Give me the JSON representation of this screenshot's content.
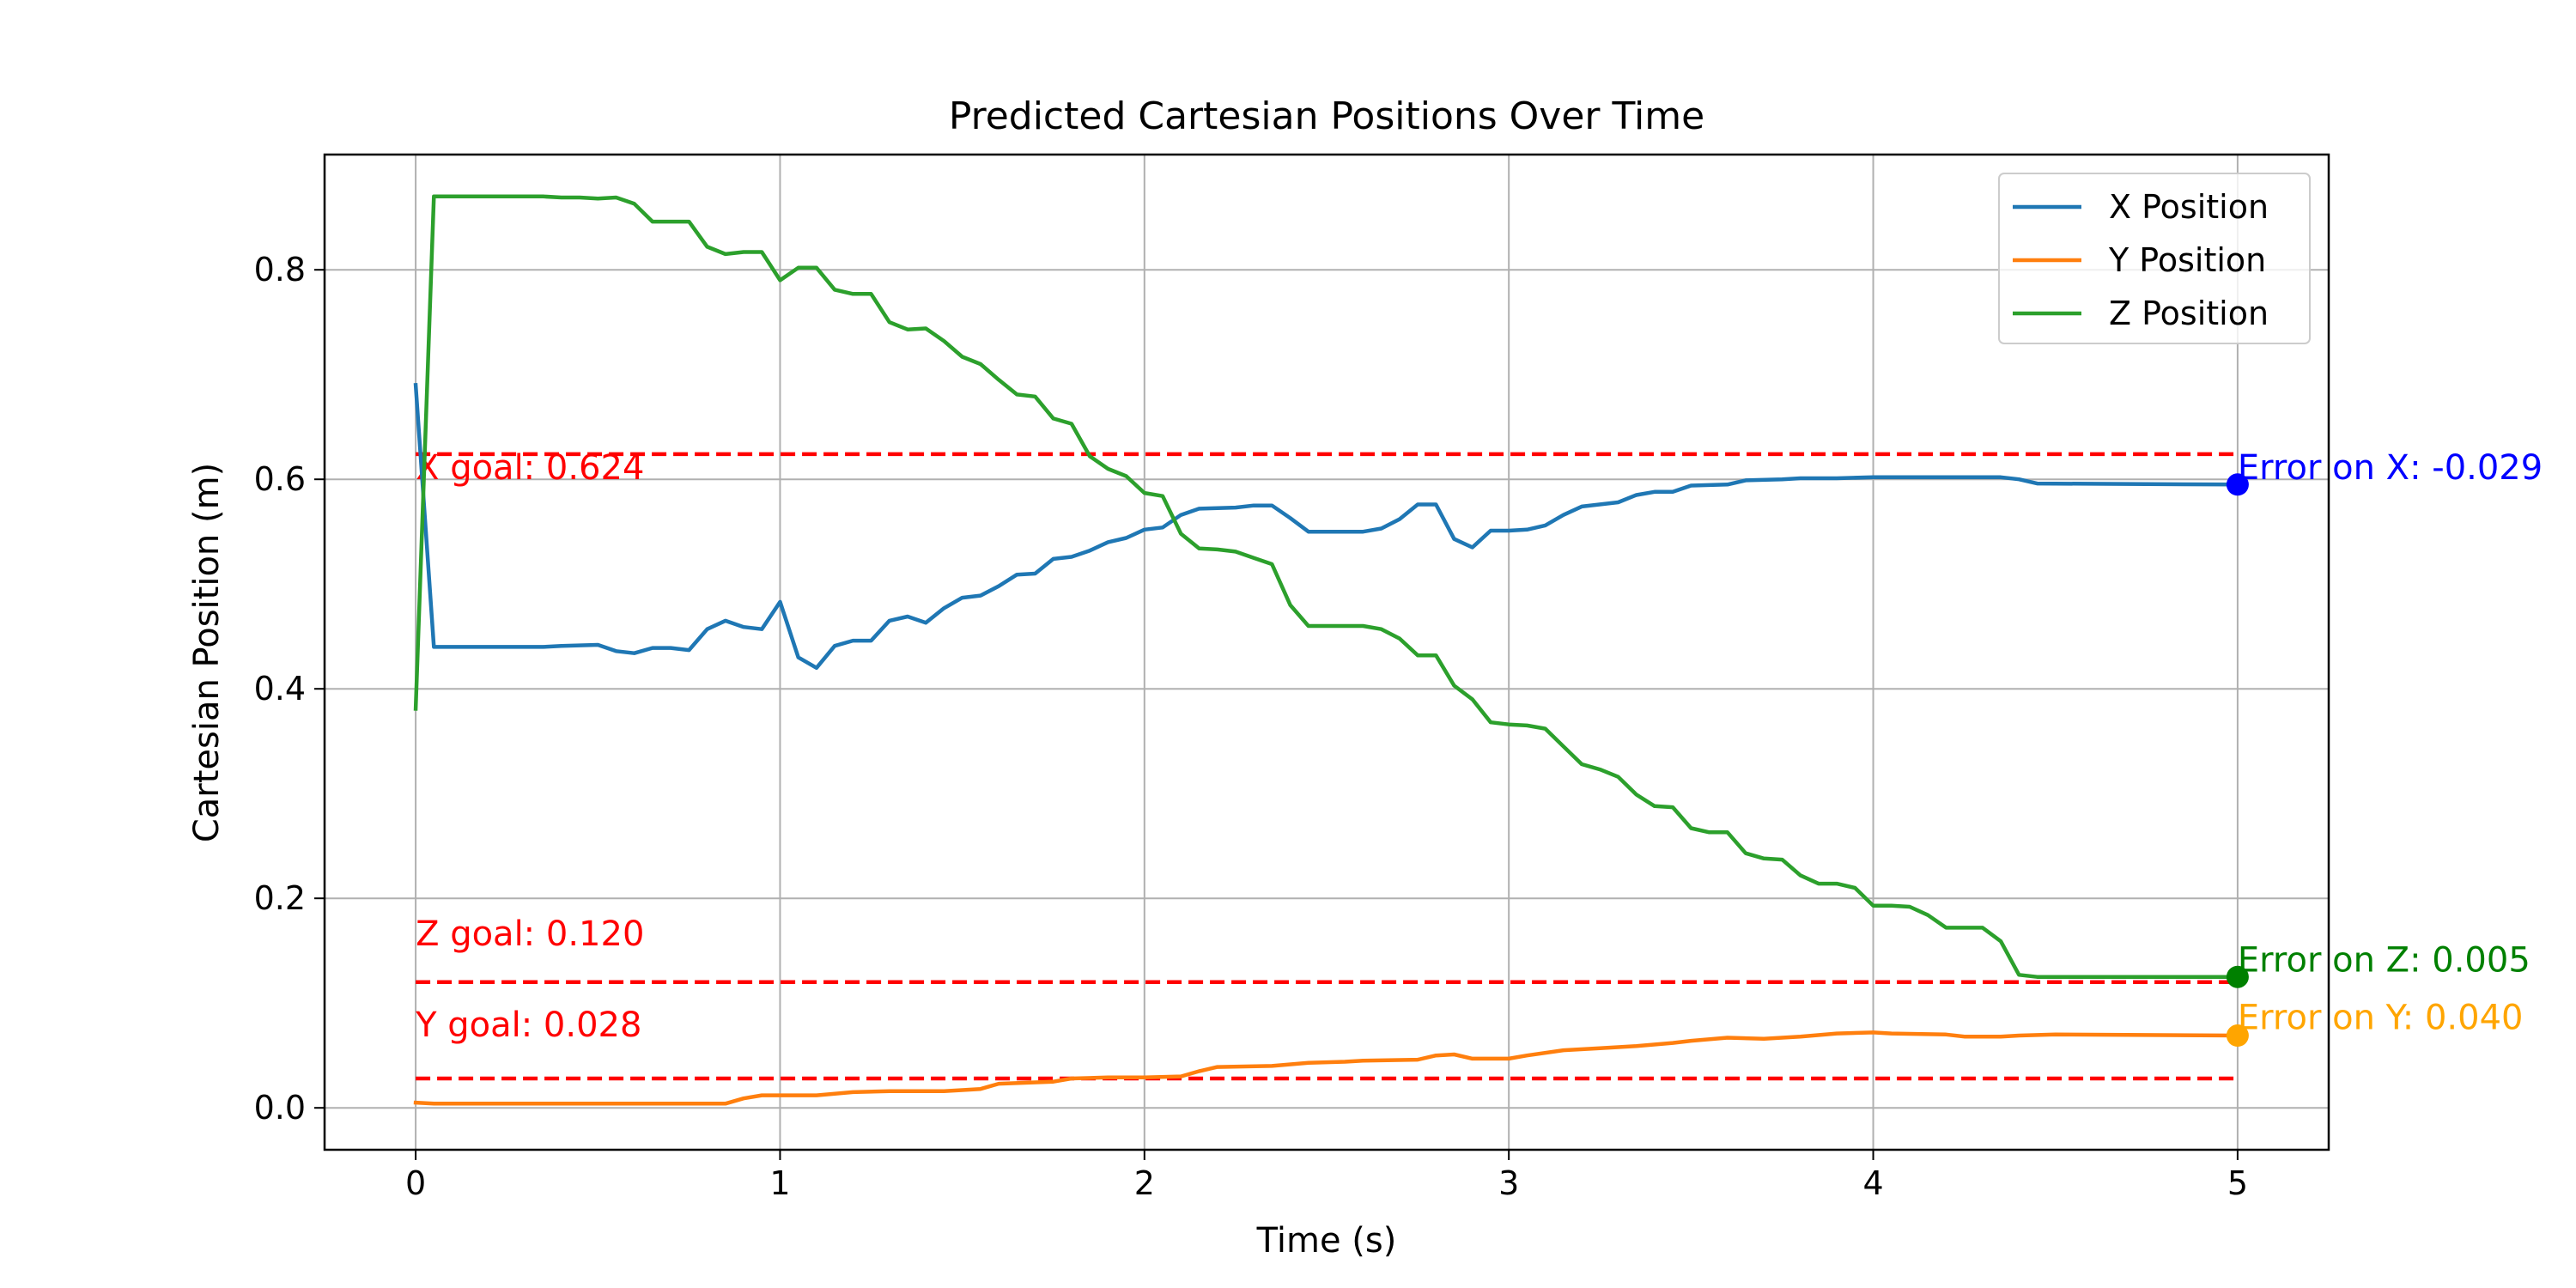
{
  "chart_data": {
    "type": "line",
    "title": "Predicted Cartesian Positions Over Time",
    "xlabel": "Time (s)",
    "ylabel": "Cartesian Position (m)",
    "xlim": [
      -0.25,
      5.25
    ],
    "ylim": [
      -0.04,
      0.91
    ],
    "x_ticks": [
      0,
      1,
      2,
      3,
      4,
      5
    ],
    "y_ticks": [
      0.0,
      0.2,
      0.4,
      0.6,
      0.8
    ],
    "x_tick_labels": [
      "0",
      "1",
      "2",
      "3",
      "4",
      "5"
    ],
    "y_tick_labels": [
      "0.0",
      "0.2",
      "0.4",
      "0.6",
      "0.8"
    ],
    "grid": true,
    "legend": {
      "placement": "top-right"
    },
    "series": [
      {
        "name": "X Position",
        "color": "#1f77b4",
        "points": [
          [
            0,
            0.69
          ],
          [
            0.05,
            0.44
          ],
          [
            0.1,
            0.44
          ],
          [
            0.2,
            0.44
          ],
          [
            0.35,
            0.44
          ],
          [
            0.4,
            0.441
          ],
          [
            0.5,
            0.442
          ],
          [
            0.55,
            0.436
          ],
          [
            0.6,
            0.434
          ],
          [
            0.65,
            0.439
          ],
          [
            0.7,
            0.439
          ],
          [
            0.75,
            0.437
          ],
          [
            0.8,
            0.457
          ],
          [
            0.85,
            0.465
          ],
          [
            0.9,
            0.459
          ],
          [
            0.95,
            0.457
          ],
          [
            1.0,
            0.483
          ],
          [
            1.05,
            0.43
          ],
          [
            1.1,
            0.42
          ],
          [
            1.15,
            0.441
          ],
          [
            1.2,
            0.446
          ],
          [
            1.25,
            0.446
          ],
          [
            1.3,
            0.465
          ],
          [
            1.35,
            0.469
          ],
          [
            1.4,
            0.463
          ],
          [
            1.45,
            0.477
          ],
          [
            1.5,
            0.487
          ],
          [
            1.55,
            0.489
          ],
          [
            1.6,
            0.498
          ],
          [
            1.65,
            0.509
          ],
          [
            1.7,
            0.51
          ],
          [
            1.75,
            0.524
          ],
          [
            1.8,
            0.526
          ],
          [
            1.85,
            0.532
          ],
          [
            1.9,
            0.54
          ],
          [
            1.95,
            0.544
          ],
          [
            2.0,
            0.552
          ],
          [
            2.05,
            0.554
          ],
          [
            2.1,
            0.566
          ],
          [
            2.15,
            0.572
          ],
          [
            2.25,
            0.573
          ],
          [
            2.3,
            0.575
          ],
          [
            2.35,
            0.575
          ],
          [
            2.4,
            0.563
          ],
          [
            2.45,
            0.55
          ],
          [
            2.6,
            0.55
          ],
          [
            2.65,
            0.553
          ],
          [
            2.7,
            0.562
          ],
          [
            2.75,
            0.576
          ],
          [
            2.8,
            0.576
          ],
          [
            2.85,
            0.543
          ],
          [
            2.9,
            0.535
          ],
          [
            2.95,
            0.551
          ],
          [
            3.0,
            0.551
          ],
          [
            3.05,
            0.552
          ],
          [
            3.1,
            0.556
          ],
          [
            3.15,
            0.566
          ],
          [
            3.2,
            0.574
          ],
          [
            3.3,
            0.578
          ],
          [
            3.35,
            0.585
          ],
          [
            3.4,
            0.588
          ],
          [
            3.45,
            0.588
          ],
          [
            3.5,
            0.594
          ],
          [
            3.6,
            0.595
          ],
          [
            3.65,
            0.599
          ],
          [
            3.75,
            0.6
          ],
          [
            3.8,
            0.601
          ],
          [
            3.9,
            0.601
          ],
          [
            4.0,
            0.602
          ],
          [
            4.1,
            0.602
          ],
          [
            4.35,
            0.602
          ],
          [
            4.4,
            0.6
          ],
          [
            4.45,
            0.596
          ],
          [
            5.0,
            0.595
          ]
        ]
      },
      {
        "name": "Y Position",
        "color": "#ff7f0e",
        "points": [
          [
            0,
            0.005
          ],
          [
            0.05,
            0.004
          ],
          [
            0.3,
            0.004
          ],
          [
            0.6,
            0.004
          ],
          [
            0.85,
            0.004
          ],
          [
            0.9,
            0.009
          ],
          [
            0.95,
            0.012
          ],
          [
            1.0,
            0.012
          ],
          [
            1.1,
            0.012
          ],
          [
            1.2,
            0.015
          ],
          [
            1.3,
            0.016
          ],
          [
            1.45,
            0.016
          ],
          [
            1.55,
            0.018
          ],
          [
            1.6,
            0.023
          ],
          [
            1.75,
            0.025
          ],
          [
            1.8,
            0.028
          ],
          [
            1.9,
            0.029
          ],
          [
            2.0,
            0.029
          ],
          [
            2.1,
            0.03
          ],
          [
            2.15,
            0.035
          ],
          [
            2.2,
            0.039
          ],
          [
            2.35,
            0.04
          ],
          [
            2.45,
            0.043
          ],
          [
            2.55,
            0.044
          ],
          [
            2.6,
            0.045
          ],
          [
            2.75,
            0.046
          ],
          [
            2.8,
            0.05
          ],
          [
            2.85,
            0.051
          ],
          [
            2.9,
            0.047
          ],
          [
            3.0,
            0.047
          ],
          [
            3.05,
            0.05
          ],
          [
            3.15,
            0.055
          ],
          [
            3.25,
            0.057
          ],
          [
            3.35,
            0.059
          ],
          [
            3.45,
            0.062
          ],
          [
            3.5,
            0.064
          ],
          [
            3.6,
            0.067
          ],
          [
            3.7,
            0.066
          ],
          [
            3.8,
            0.068
          ],
          [
            3.9,
            0.071
          ],
          [
            4.0,
            0.072
          ],
          [
            4.05,
            0.071
          ],
          [
            4.2,
            0.07
          ],
          [
            4.25,
            0.068
          ],
          [
            4.35,
            0.068
          ],
          [
            4.4,
            0.069
          ],
          [
            4.5,
            0.07
          ],
          [
            5.0,
            0.069
          ]
        ]
      },
      {
        "name": "Z Position",
        "color": "#2ca02c",
        "points": [
          [
            0,
            0.381
          ],
          [
            0.05,
            0.87
          ],
          [
            0.1,
            0.87
          ],
          [
            0.35,
            0.87
          ],
          [
            0.4,
            0.869
          ],
          [
            0.45,
            0.869
          ],
          [
            0.5,
            0.868
          ],
          [
            0.55,
            0.869
          ],
          [
            0.6,
            0.863
          ],
          [
            0.65,
            0.846
          ],
          [
            0.7,
            0.846
          ],
          [
            0.75,
            0.846
          ],
          [
            0.8,
            0.822
          ],
          [
            0.85,
            0.815
          ],
          [
            0.9,
            0.817
          ],
          [
            0.95,
            0.817
          ],
          [
            1.0,
            0.79
          ],
          [
            1.05,
            0.802
          ],
          [
            1.1,
            0.802
          ],
          [
            1.15,
            0.781
          ],
          [
            1.2,
            0.777
          ],
          [
            1.25,
            0.777
          ],
          [
            1.3,
            0.75
          ],
          [
            1.35,
            0.743
          ],
          [
            1.4,
            0.744
          ],
          [
            1.45,
            0.732
          ],
          [
            1.5,
            0.717
          ],
          [
            1.55,
            0.71
          ],
          [
            1.6,
            0.695
          ],
          [
            1.65,
            0.681
          ],
          [
            1.7,
            0.679
          ],
          [
            1.75,
            0.658
          ],
          [
            1.8,
            0.653
          ],
          [
            1.85,
            0.622
          ],
          [
            1.9,
            0.61
          ],
          [
            1.95,
            0.603
          ],
          [
            2.0,
            0.587
          ],
          [
            2.05,
            0.584
          ],
          [
            2.1,
            0.548
          ],
          [
            2.15,
            0.534
          ],
          [
            2.2,
            0.533
          ],
          [
            2.25,
            0.531
          ],
          [
            2.3,
            0.525
          ],
          [
            2.35,
            0.519
          ],
          [
            2.4,
            0.48
          ],
          [
            2.45,
            0.46
          ],
          [
            2.5,
            0.46
          ],
          [
            2.6,
            0.46
          ],
          [
            2.65,
            0.457
          ],
          [
            2.7,
            0.448
          ],
          [
            2.75,
            0.432
          ],
          [
            2.8,
            0.432
          ],
          [
            2.85,
            0.403
          ],
          [
            2.9,
            0.39
          ],
          [
            2.95,
            0.368
          ],
          [
            3.0,
            0.366
          ],
          [
            3.05,
            0.365
          ],
          [
            3.1,
            0.362
          ],
          [
            3.15,
            0.345
          ],
          [
            3.2,
            0.328
          ],
          [
            3.25,
            0.323
          ],
          [
            3.3,
            0.316
          ],
          [
            3.35,
            0.299
          ],
          [
            3.4,
            0.288
          ],
          [
            3.45,
            0.287
          ],
          [
            3.5,
            0.267
          ],
          [
            3.55,
            0.263
          ],
          [
            3.6,
            0.263
          ],
          [
            3.65,
            0.243
          ],
          [
            3.7,
            0.238
          ],
          [
            3.75,
            0.237
          ],
          [
            3.8,
            0.222
          ],
          [
            3.85,
            0.214
          ],
          [
            3.9,
            0.214
          ],
          [
            3.95,
            0.21
          ],
          [
            4.0,
            0.193
          ],
          [
            4.05,
            0.193
          ],
          [
            4.1,
            0.192
          ],
          [
            4.15,
            0.184
          ],
          [
            4.2,
            0.172
          ],
          [
            4.3,
            0.172
          ],
          [
            4.35,
            0.159
          ],
          [
            4.4,
            0.127
          ],
          [
            4.45,
            0.125
          ],
          [
            5.0,
            0.125
          ]
        ]
      }
    ],
    "goals": [
      {
        "axis": "X",
        "value": 0.624,
        "label": "X goal: 0.624",
        "label_y": 0.6
      },
      {
        "axis": "Z",
        "value": 0.12,
        "label": "Z goal: 0.120",
        "label_y": 0.155
      },
      {
        "axis": "Y",
        "value": 0.028,
        "label": "Y goal: 0.028",
        "label_y": 0.068
      }
    ],
    "goal_x_range": [
      0,
      5
    ],
    "goal_color": "#ff0000",
    "endpoints": [
      {
        "axis": "X",
        "x": 5,
        "y": 0.595,
        "color": "#0000ff",
        "label": "Error on X: -0.029",
        "label_y": 0.6
      },
      {
        "axis": "Z",
        "x": 5,
        "y": 0.125,
        "color": "#008000",
        "label": "Error on Z: 0.005",
        "label_y": 0.13
      },
      {
        "axis": "Y",
        "x": 5,
        "y": 0.069,
        "color": "#ffa500",
        "label": "Error on Y: 0.040",
        "label_y": 0.075
      }
    ]
  }
}
